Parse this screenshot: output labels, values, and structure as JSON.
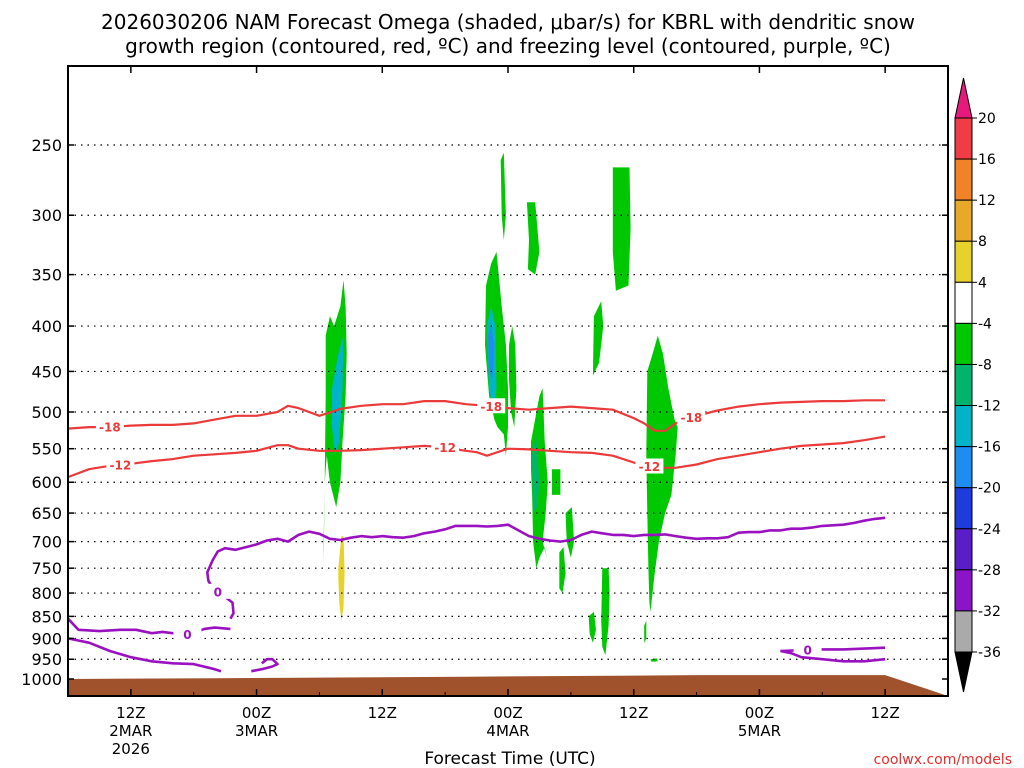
{
  "title": {
    "line1": "2026030206 NAM Forecast Omega (shaded, μbar/s) for KBRL with dendritic snow",
    "line2": "growth region (contoured, red, ºC) and freezing level (contoured, purple, ºC)"
  },
  "credit": "coolwx.com/models",
  "chart_data": {
    "type": "heatmap",
    "xlabel": "Forecast Time (UTC)",
    "ylabel": "",
    "y_axis_unit": "hPa",
    "y_scale": "log-pressure, inverted",
    "ylim": [
      1020,
      200
    ],
    "y_ticks": [
      250,
      300,
      350,
      400,
      450,
      500,
      550,
      600,
      650,
      700,
      750,
      800,
      850,
      900,
      950,
      1000
    ],
    "xlim": [
      "2026-03-02 06Z",
      "2026-03-05 18Z"
    ],
    "x_ticks": [
      {
        "time": "2026-03-02 12Z",
        "lines": [
          "12Z",
          "2MAR",
          "2026"
        ]
      },
      {
        "time": "2026-03-03 00Z",
        "lines": [
          "00Z",
          "3MAR"
        ]
      },
      {
        "time": "2026-03-03 12Z",
        "lines": [
          "12Z"
        ]
      },
      {
        "time": "2026-03-04 00Z",
        "lines": [
          "00Z",
          "4MAR"
        ]
      },
      {
        "time": "2026-03-04 12Z",
        "lines": [
          "12Z"
        ]
      },
      {
        "time": "2026-03-05 00Z",
        "lines": [
          "00Z",
          "5MAR"
        ]
      },
      {
        "time": "2026-03-05 12Z",
        "lines": [
          "12Z"
        ]
      }
    ],
    "grid": true,
    "colorbar": {
      "labels": [
        "20",
        "16",
        "12",
        "8",
        "4",
        "-4",
        "-8",
        "-12",
        "-16",
        "-20",
        "-24",
        "-28",
        "-32",
        "-36"
      ],
      "colors": [
        "#f03c46",
        "#f08228",
        "#e8a82a",
        "#e6d22a",
        "#ffffff",
        "#00c800",
        "#00b46e",
        "#00b4c8",
        "#1e8cf0",
        "#1e3cdc",
        "#5a1ec8",
        "#8c14c8",
        "#aaaaaa"
      ],
      "top_extend_color": "#e6197d",
      "bottom_extend_color": "#000000"
    },
    "omega_regions": [
      {
        "value": -6,
        "color": "#00c800",
        "t": [
          30.6,
          31,
          31.4,
          32,
          32.3,
          32.5,
          32.6,
          32.5,
          32.2,
          32,
          31.6,
          31,
          30.7,
          30.5,
          30.4,
          30.4,
          30.5,
          30.6
        ],
        "p": [
          410,
          390,
          400,
          380,
          355,
          380,
          430,
          480,
          540,
          600,
          640,
          600,
          560,
          600,
          700,
          740,
          600,
          480
        ]
      },
      {
        "value": -12,
        "color": "#00b4c8",
        "t": [
          31.2,
          31.8,
          32.3,
          32.2,
          31.9,
          31.5,
          31.2
        ],
        "p": [
          470,
          430,
          410,
          470,
          540,
          560,
          520
        ]
      },
      {
        "value": 6,
        "color": "#e6d22a",
        "t": [
          31.8,
          32.1,
          32.3,
          32.4,
          32.3,
          32.1,
          31.9,
          31.8
        ],
        "p": [
          750,
          690,
          690,
          760,
          830,
          860,
          820,
          770
        ]
      },
      {
        "value": -6,
        "color": "#00c800",
        "t": [
          47.3,
          47.6,
          47.8,
          47.6,
          47.4
        ],
        "p": [
          260,
          255,
          300,
          320,
          300
        ]
      },
      {
        "value": -6,
        "color": "#00c800",
        "t": [
          49.8,
          50.6,
          51.0,
          50.6,
          49.9,
          50.0
        ],
        "p": [
          290,
          290,
          330,
          350,
          345,
          320
        ]
      },
      {
        "value": -6,
        "color": "#00c800",
        "t": [
          45.9,
          46.4,
          46.9,
          47.4,
          47.8,
          48.0,
          48.0,
          47.8,
          47.6,
          47.0,
          46.7,
          46.2,
          45.8
        ],
        "p": [
          360,
          340,
          330,
          380,
          420,
          470,
          520,
          560,
          530,
          520,
          510,
          480,
          420
        ]
      },
      {
        "value": -14,
        "color": "#00b4c8",
        "t": [
          46.0,
          46.4,
          46.8,
          46.9,
          46.6,
          46.2
        ],
        "p": [
          400,
          380,
          400,
          470,
          500,
          470
        ]
      },
      {
        "value": -18,
        "color": "#1e8cf0",
        "t": [
          46.1,
          46.4,
          46.7,
          46.5,
          46.2
        ],
        "p": [
          410,
          400,
          420,
          460,
          450
        ]
      },
      {
        "value": -6,
        "color": "#00c800",
        "t": [
          48.1,
          48.4,
          48.7,
          48.8,
          48.6,
          48.3,
          48.1
        ],
        "p": [
          420,
          400,
          420,
          470,
          520,
          500,
          460
        ]
      },
      {
        "value": -6,
        "color": "#00c800",
        "t": [
          58.0,
          59.6,
          59.7,
          59.5,
          58.3,
          58.0
        ],
        "p": [
          265,
          265,
          310,
          360,
          365,
          330
        ]
      },
      {
        "value": -6,
        "color": "#00c800",
        "t": [
          56.2,
          56.9,
          57.1,
          56.7,
          56.1
        ],
        "p": [
          390,
          375,
          400,
          440,
          455
        ]
      },
      {
        "value": -6,
        "color": "#00c800",
        "t": [
          50.2,
          51.0,
          51.3,
          51.4,
          51.5,
          51.8,
          51.6,
          51.3,
          51.7,
          51.5,
          51.0,
          50.7,
          50.4,
          50.3,
          50.2
        ],
        "p": [
          540,
          480,
          470,
          500,
          540,
          600,
          650,
          700,
          730,
          710,
          730,
          750,
          700,
          620,
          580
        ]
      },
      {
        "value": -8,
        "color": "#00b46e",
        "t": [
          50.3,
          50.7,
          51.0,
          50.8,
          50.4
        ],
        "p": [
          560,
          530,
          600,
          640,
          650
        ]
      },
      {
        "value": -6,
        "color": "#00c800",
        "t": [
          52.2,
          53.0,
          53.0,
          52.2
        ],
        "p": [
          580,
          580,
          620,
          620
        ]
      },
      {
        "value": -6,
        "color": "#00c800",
        "t": [
          53.5,
          54.1,
          54.3,
          54.0,
          53.6
        ],
        "p": [
          650,
          640,
          700,
          730,
          700
        ]
      },
      {
        "value": -6,
        "color": "#00c800",
        "t": [
          52.9,
          53.3,
          53.5,
          53.2,
          52.9
        ],
        "p": [
          720,
          710,
          760,
          800,
          790
        ]
      },
      {
        "value": -6,
        "color": "#00c800",
        "t": [
          55.7,
          56.2,
          56.4,
          56.1,
          55.8
        ],
        "p": [
          850,
          840,
          880,
          910,
          890
        ]
      },
      {
        "value": -6,
        "color": "#00c800",
        "t": [
          57.0,
          57.6,
          57.7,
          57.6,
          57.3,
          57.0,
          56.9
        ],
        "p": [
          750,
          750,
          800,
          870,
          940,
          920,
          860
        ]
      },
      {
        "value": -6,
        "color": "#00c800",
        "t": [
          61.0,
          61.2,
          61.2,
          61.0
        ],
        "p": [
          870,
          860,
          900,
          910
        ]
      },
      {
        "value": -6,
        "color": "#00c800",
        "t": [
          61.3,
          61.8,
          62.3,
          62.8,
          63.3,
          63.9,
          64.2,
          64.0,
          63.6,
          63.0,
          62.4,
          62.0,
          61.6,
          61.5,
          61.4,
          61.3,
          61.2
        ],
        "p": [
          450,
          430,
          410,
          430,
          470,
          510,
          520,
          560,
          620,
          650,
          700,
          760,
          840,
          820,
          750,
          650,
          560
        ]
      },
      {
        "value": -6,
        "color": "#00c800",
        "t": [
          61.6,
          62.2,
          62.3,
          61.7
        ],
        "p": [
          950,
          948,
          955,
          956
        ]
      }
    ],
    "freezing_level_0C": [
      {
        "t": [
          6,
          7,
          9,
          11,
          12.5,
          14,
          15,
          16,
          17,
          18,
          19,
          20,
          21.5
        ],
        "p": [
          855,
          880,
          883,
          880,
          880,
          888,
          885,
          888,
          893,
          888,
          878,
          875,
          878
        ],
        "label_at": 17.4
      },
      {
        "t": [
          6,
          8,
          10,
          12,
          14,
          16,
          18,
          20,
          20.6
        ],
        "p": [
          900,
          910,
          930,
          945,
          955,
          960,
          962,
          975,
          980
        ]
      },
      {
        "t": [
          23.5,
          24.5,
          25.5,
          26,
          25.5,
          25,
          24.5
        ],
        "p": [
          980,
          975,
          968,
          962,
          950,
          950,
          960
        ]
      },
      {
        "t": [
          21.5,
          21.8,
          21.7,
          20.8,
          19.8,
          19.4,
          19.3,
          19.8,
          20.3,
          21.0,
          22,
          23,
          24,
          25,
          26,
          27,
          28,
          29,
          30,
          31,
          32,
          33,
          34,
          35,
          36,
          37,
          38,
          39,
          40,
          41,
          42,
          43,
          44,
          45,
          46,
          47,
          48,
          49,
          50,
          51,
          52,
          53,
          54,
          55,
          56,
          57,
          58,
          59,
          60,
          61,
          62,
          63,
          64,
          65,
          66,
          67,
          68,
          69,
          70,
          71,
          72,
          73,
          74,
          75,
          76,
          77,
          78,
          79,
          80,
          81,
          82,
          83,
          84
        ],
        "p": [
          855,
          843,
          820,
          805,
          790,
          775,
          758,
          735,
          718,
          712,
          715,
          710,
          705,
          698,
          695,
          700,
          688,
          682,
          686,
          695,
          697,
          693,
          690,
          692,
          690,
          692,
          693,
          690,
          685,
          682,
          678,
          672,
          672,
          672,
          673,
          672,
          670,
          680,
          690,
          695,
          698,
          700,
          697,
          688,
          682,
          685,
          688,
          688,
          690,
          688,
          688,
          687,
          690,
          693,
          695,
          694,
          694,
          692,
          684,
          683,
          683,
          680,
          680,
          677,
          677,
          675,
          672,
          671,
          670,
          667,
          663,
          660,
          658
        ],
        "label_at": 20.3
      },
      {
        "t": [
          74.0,
          76,
          78,
          80,
          82,
          84
        ],
        "p": [
          930,
          928,
          926,
          926,
          924,
          922
        ],
        "label_at": 76.6
      },
      {
        "t": [
          74.0,
          75,
          76,
          78,
          80,
          82,
          84
        ],
        "p": [
          930,
          935,
          945,
          950,
          955,
          955,
          950
        ]
      }
    ],
    "dgz_minus12C": [
      {
        "t": [
          6,
          8,
          10,
          12,
          14,
          16,
          18,
          20,
          22,
          24,
          26,
          27,
          28,
          30,
          32,
          34,
          36,
          38,
          40,
          42,
          43,
          44,
          45,
          46,
          47,
          48,
          50,
          52,
          54,
          56,
          58,
          60,
          62,
          64,
          66,
          68,
          70,
          72,
          74,
          76,
          78,
          80,
          82,
          84
        ],
        "p": [
          592,
          580,
          575,
          572,
          568,
          565,
          560,
          558,
          556,
          553,
          545,
          545,
          550,
          553,
          553,
          552,
          550,
          548,
          546,
          548,
          551,
          553,
          555,
          560,
          555,
          550,
          551,
          553,
          555,
          556,
          560,
          570,
          578,
          578,
          573,
          565,
          560,
          555,
          550,
          546,
          544,
          542,
          538,
          533
        ],
        "labels_at": [
          11,
          42,
          61.5
        ]
      }
    ],
    "dgz_minus18C": [
      {
        "t": [
          6,
          8,
          10,
          12,
          14,
          16,
          18,
          20,
          22,
          24,
          26,
          27,
          28,
          30,
          32,
          34,
          36,
          38,
          40,
          42,
          44,
          46,
          48,
          50,
          52,
          54,
          56,
          58,
          60,
          61,
          62,
          63,
          64,
          66,
          68,
          70,
          72,
          74,
          76,
          78,
          80,
          82,
          84
        ],
        "p": [
          522,
          520,
          520,
          518,
          517,
          517,
          515,
          510,
          505,
          505,
          500,
          492,
          495,
          505,
          496,
          492,
          490,
          490,
          486,
          486,
          490,
          492,
          495,
          497,
          495,
          493,
          495,
          497,
          508,
          515,
          525,
          525,
          515,
          505,
          498,
          493,
          490,
          488,
          487,
          486,
          486,
          485,
          485
        ],
        "labels_at": [
          10,
          46.4,
          65.5
        ]
      }
    ],
    "surface": {
      "color": "#a0522d",
      "p_top": [
        1000,
        998,
        996,
        994,
        992,
        990,
        990,
        990
      ],
      "t": [
        6,
        20,
        32,
        44,
        56,
        66,
        76,
        84
      ]
    }
  }
}
